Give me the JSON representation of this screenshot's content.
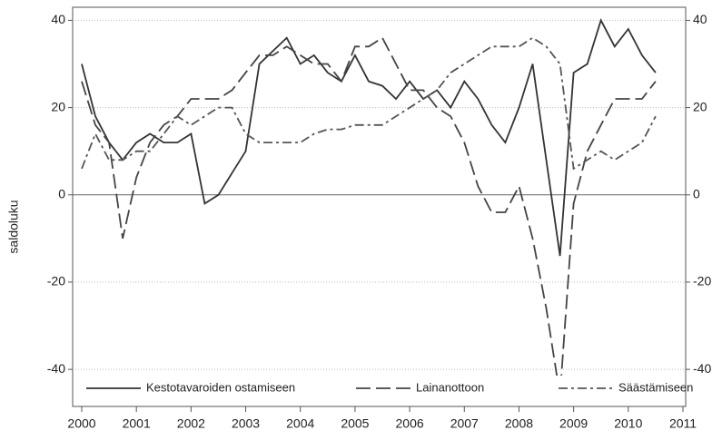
{
  "chart_data": {
    "type": "line",
    "y_label": "saldoluku",
    "x": [
      2000,
      2000.25,
      2000.5,
      2000.75,
      2001,
      2001.25,
      2001.5,
      2001.75,
      2002,
      2002.25,
      2002.5,
      2002.75,
      2003,
      2003.25,
      2003.5,
      2003.75,
      2004,
      2004.25,
      2004.5,
      2004.75,
      2005,
      2005.25,
      2005.5,
      2005.75,
      2006,
      2006.25,
      2006.5,
      2006.75,
      2007,
      2007.25,
      2007.5,
      2007.75,
      2008,
      2008.25,
      2008.5,
      2008.75,
      2009,
      2009.25,
      2009.5,
      2009.75,
      2010,
      2010.25,
      2010.5
    ],
    "series": [
      {
        "name": "Kestotavaroiden ostamiseen",
        "color": "#333333",
        "style": "solid",
        "values": [
          30,
          18,
          12,
          8,
          12,
          14,
          12,
          12,
          14,
          -2,
          0,
          5,
          10,
          30,
          33,
          36,
          30,
          32,
          28,
          26,
          32,
          26,
          25,
          22,
          26,
          22,
          24,
          20,
          26,
          22,
          16,
          12,
          20,
          30,
          8,
          -14,
          28,
          30,
          40,
          34,
          38,
          32,
          28
        ]
      },
      {
        "name": "Lainanottoon",
        "color": "#444444",
        "style": "dashed",
        "values": [
          26,
          16,
          12,
          -10,
          4,
          12,
          16,
          18,
          22,
          22,
          22,
          24,
          28,
          32,
          32,
          34,
          32,
          30,
          30,
          26,
          34,
          34,
          36,
          30,
          24,
          24,
          20,
          18,
          12,
          2,
          -4,
          -4,
          2,
          -10,
          -26,
          -46,
          -2,
          10,
          16,
          22,
          22,
          22,
          26
        ]
      },
      {
        "name": "Säästämiseen",
        "color": "#555555",
        "style": "dashdot",
        "values": [
          6,
          14,
          8,
          8,
          10,
          10,
          14,
          18,
          16,
          18,
          20,
          20,
          14,
          12,
          12,
          12,
          12,
          14,
          15,
          15,
          16,
          16,
          16,
          18,
          20,
          22,
          24,
          28,
          30,
          32,
          34,
          34,
          34,
          36,
          34,
          30,
          6,
          8,
          10,
          8,
          10,
          12,
          18
        ]
      }
    ],
    "xlim": [
      2000,
      2011
    ],
    "xticks": [
      2000,
      2001,
      2002,
      2003,
      2004,
      2005,
      2006,
      2007,
      2008,
      2009,
      2010,
      2011
    ],
    "ylim": [
      -48.5,
      43
    ],
    "yticks": [
      -40,
      -20,
      0,
      20,
      40
    ],
    "grid": true,
    "legend": "bottom"
  }
}
